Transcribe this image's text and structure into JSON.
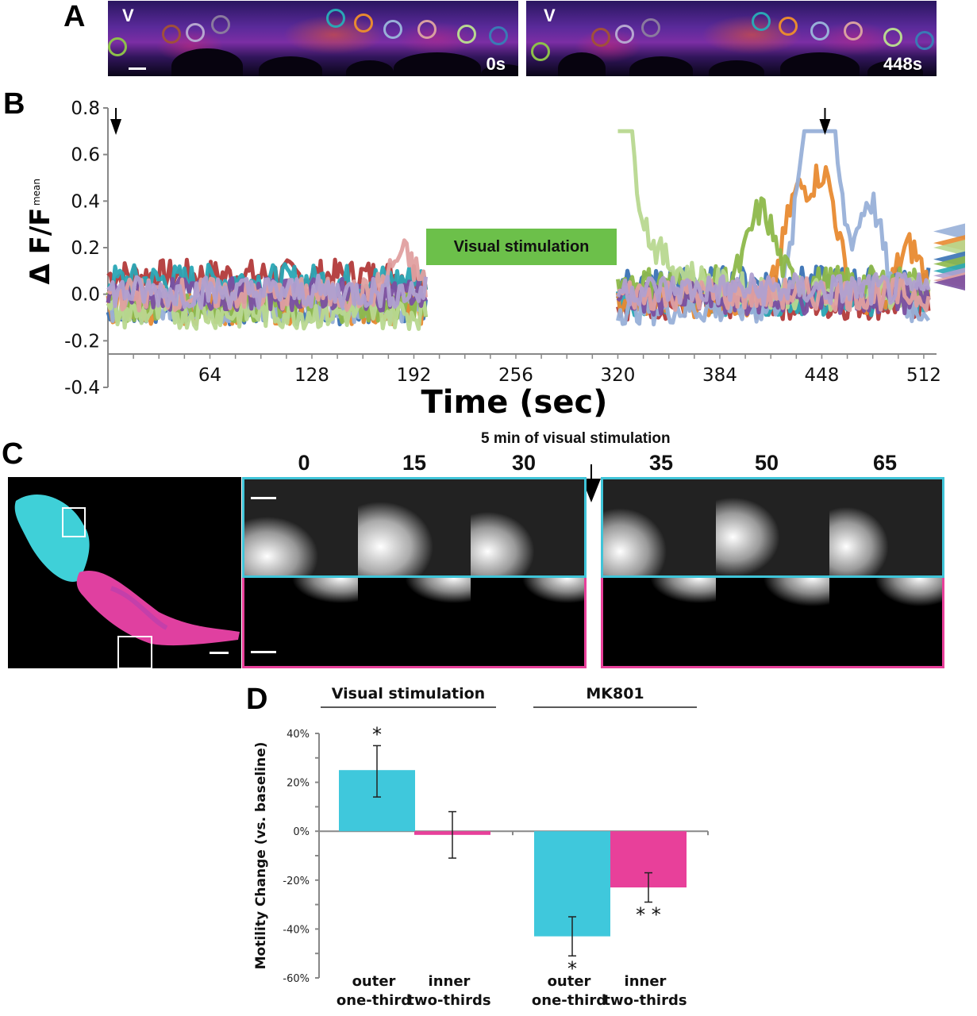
{
  "panels": {
    "A": {
      "letter": "A",
      "images": [
        {
          "corner_label": "V",
          "time_label": "0s"
        },
        {
          "corner_label": "V",
          "time_label": "448s"
        }
      ],
      "roi_colors": [
        "#8dc04a",
        "#a0503a",
        "#b6a6d0",
        "#8a7a9e",
        "#2aa7b5",
        "#e88a30",
        "#98b0d8",
        "#d8a0a0",
        "#b8d890",
        "#3a7ab5"
      ]
    },
    "B": {
      "letter": "B",
      "stim_label": "Visual stimulation"
    },
    "C": {
      "letter": "C",
      "stim_header": "5 min of visual stimulation",
      "timepoints_before": [
        "0",
        "15",
        "30"
      ],
      "timepoints_after": [
        "35",
        "50",
        "65"
      ],
      "outer_color": "#3fc4d8",
      "inner_color": "#e8409a"
    },
    "D": {
      "letter": "D",
      "group_labels": [
        "Visual stimulation",
        "MK801"
      ]
    }
  },
  "chart_data": [
    {
      "type": "line",
      "title": "",
      "xlabel": "Time (sec)",
      "ylabel": "Δ F/F",
      "ylabel_sub": "mean",
      "xlim": [
        0,
        520
      ],
      "ylim": [
        -0.4,
        0.8
      ],
      "xticks": [
        64,
        128,
        192,
        256,
        320,
        384,
        448,
        512
      ],
      "xtick_labels": [
        "64",
        "128",
        "192",
        "256",
        "320",
        "384",
        "448",
        "512"
      ],
      "yticks": [
        -0.4,
        -0.2,
        0.0,
        0.2,
        0.4,
        0.6,
        0.8
      ],
      "ytick_labels": [
        "-0.4",
        "-0.2",
        "0.0",
        "0.2",
        "0.4",
        "0.6",
        "0.8"
      ],
      "gap": [
        200,
        320
      ],
      "annotations": [
        {
          "type": "arrow",
          "x": 5,
          "label": ""
        },
        {
          "type": "arrow",
          "x": 450,
          "label": ""
        },
        {
          "type": "box",
          "x_start": 205,
          "x_end": 318,
          "y": 0.15,
          "text": "Visual stimulation"
        }
      ],
      "series": [
        {
          "name": "roi-1",
          "color": "#b23a3a",
          "base": 0.08,
          "pre_mean": 0.08,
          "post_mean": -0.04,
          "peaks": []
        },
        {
          "name": "roi-2",
          "color": "#2aa7b5",
          "base": 0.05,
          "pre_mean": 0.06,
          "post_mean": -0.02,
          "peaks": []
        },
        {
          "name": "roi-3",
          "color": "#3a72b5",
          "base": -0.05,
          "pre_mean": -0.06,
          "post_mean": 0.05,
          "peaks": []
        },
        {
          "name": "roi-4",
          "color": "#e88a30",
          "base": -0.06,
          "pre_mean": -0.06,
          "post_mean": -0.03,
          "peaks": [
            {
              "x": 432,
              "y": 0.4
            },
            {
              "x": 450,
              "y": 0.48
            },
            {
              "x": 503,
              "y": 0.2
            }
          ]
        },
        {
          "name": "roi-5",
          "color": "#98b0d8",
          "base": -0.05,
          "pre_mean": -0.05,
          "post_mean": -0.06,
          "peaks": [
            {
              "x": 440,
              "y": 0.66
            },
            {
              "x": 452,
              "y": 0.66
            },
            {
              "x": 478,
              "y": 0.4
            }
          ]
        },
        {
          "name": "roi-6",
          "color": "#8db84a",
          "base": -0.05,
          "pre_mean": -0.05,
          "post_mean": 0.05,
          "peaks": [
            {
              "x": 410,
              "y": 0.36
            }
          ]
        },
        {
          "name": "roi-7",
          "color": "#b8d890",
          "base": -0.08,
          "pre_mean": -0.08,
          "post_mean": 0.0,
          "peaks": [
            {
              "x": 320,
              "y": 0.57
            }
          ]
        },
        {
          "name": "roi-8",
          "color": "#7a4fa0",
          "base": 0.0,
          "pre_mean": 0.0,
          "post_mean": -0.02,
          "peaks": []
        },
        {
          "name": "roi-9",
          "color": "#e0a0a0",
          "base": 0.0,
          "pre_mean": 0.0,
          "post_mean": 0.0,
          "peaks": [
            {
              "x": 185,
              "y": 0.17
            }
          ]
        },
        {
          "name": "roi-10",
          "color": "#b0a0d0",
          "base": 0.0,
          "pre_mean": 0.01,
          "post_mean": 0.02,
          "peaks": []
        }
      ]
    },
    {
      "type": "bar",
      "title": "",
      "xlabel": "",
      "ylabel": "Motility Change (vs. baseline)",
      "ylim": [
        -60,
        40
      ],
      "ytick_labels": [
        "40%",
        "20%",
        "0%",
        "-20%",
        "-40%",
        "-60%"
      ],
      "yticks": [
        40,
        20,
        0,
        -20,
        -40,
        -60
      ],
      "groups": [
        "Visual stimulation",
        "MK801"
      ],
      "categories": [
        "outer one-third",
        "inner two-thirds",
        "outer one-third",
        "inner two-thirds"
      ],
      "category_lines": [
        [
          "outer",
          "one-third"
        ],
        [
          "inner",
          "two-thirds"
        ],
        [
          "outer",
          "one-third"
        ],
        [
          "inner",
          "two-thirds"
        ]
      ],
      "values": [
        25,
        -1.5,
        -43,
        -23
      ],
      "errors": [
        [
          14,
          35
        ],
        [
          -11,
          8
        ],
        [
          -51,
          -35
        ],
        [
          -29,
          -17
        ]
      ],
      "colors": [
        "#3fc8dc",
        "#e8409a",
        "#3fc8dc",
        "#e8409a"
      ],
      "significance": [
        "*",
        "",
        "*",
        "**"
      ],
      "units": "%"
    }
  ]
}
